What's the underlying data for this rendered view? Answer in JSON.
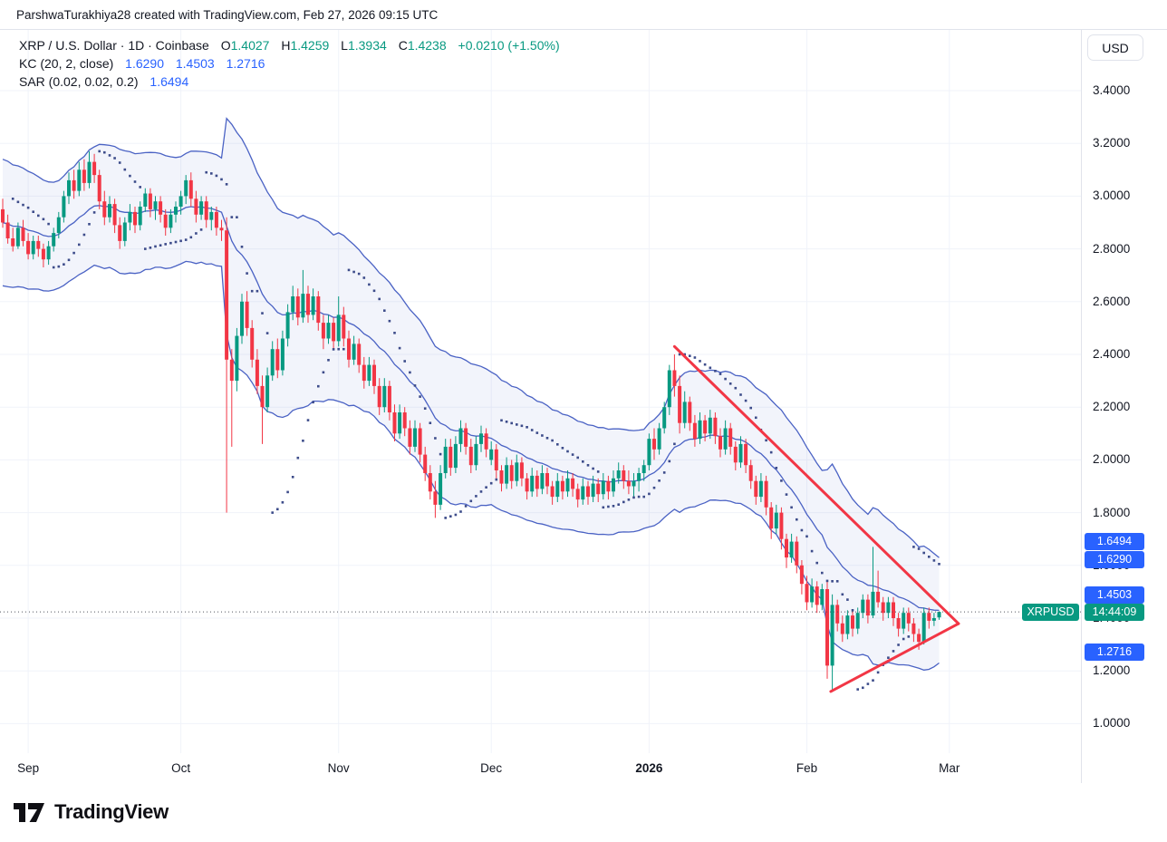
{
  "attribution": "ParshwaTurakhiya28 created with TradingView.com, Feb 27, 2026 09:15 UTC",
  "legend": {
    "symbol_line": "XRP / U.S. Dollar · 1D · Coinbase",
    "ohlc": {
      "o_label": "O",
      "o": "1.4027",
      "h_label": "H",
      "h": "1.4259",
      "l_label": "L",
      "l": "1.3934",
      "c_label": "C",
      "c": "1.4238",
      "change": "+0.0210 (+1.50%)"
    },
    "kc": {
      "title": "KC (20, 2, close)",
      "upper": "1.6290",
      "basis": "1.4503",
      "lower": "1.2716"
    },
    "sar": {
      "title": "SAR (0.02, 0.02, 0.2)",
      "value": "1.6494"
    }
  },
  "axis": {
    "currency_button": "USD",
    "y_ticks": [
      {
        "label": "3.4000",
        "price": 3.4
      },
      {
        "label": "3.2000",
        "price": 3.2
      },
      {
        "label": "3.0000",
        "price": 3.0
      },
      {
        "label": "2.8000",
        "price": 2.8
      },
      {
        "label": "2.6000",
        "price": 2.6
      },
      {
        "label": "2.4000",
        "price": 2.4
      },
      {
        "label": "2.2000",
        "price": 2.2
      },
      {
        "label": "2.0000",
        "price": 2.0
      },
      {
        "label": "1.8000",
        "price": 1.8
      },
      {
        "label": "1.6000",
        "price": 1.6
      },
      {
        "label": "1.4000",
        "price": 1.4
      },
      {
        "label": "1.2000",
        "price": 1.2
      },
      {
        "label": "1.0000",
        "price": 1.0
      }
    ],
    "x_labels": [
      {
        "label": "Sep",
        "i": 5
      },
      {
        "label": "Oct",
        "i": 35
      },
      {
        "label": "Nov",
        "i": 66
      },
      {
        "label": "Dec",
        "i": 96
      },
      {
        "label": "2026",
        "i": 127,
        "bold": true
      },
      {
        "label": "Feb",
        "i": 158
      },
      {
        "label": "Mar",
        "i": 186
      }
    ],
    "badges": [
      {
        "name": "sar-last-value-badge",
        "text": "1.6494",
        "price": 1.6494,
        "shift": -12,
        "bg": "#2962FF"
      },
      {
        "name": "kc-upper-badge",
        "text": "1.6290",
        "price": 1.629,
        "shift": 2,
        "bg": "#2962FF"
      },
      {
        "name": "kc-basis-badge",
        "text": "1.4503",
        "price": 1.4503,
        "shift": -11,
        "bg": "#2962FF"
      },
      {
        "name": "kc-lower-badge",
        "text": "1.2716",
        "price": 1.2716,
        "shift": 0,
        "bg": "#2962FF"
      }
    ],
    "price_line": {
      "label": "XRPUSD",
      "countdown": "14:44:09",
      "price": 1.4238,
      "bg": "#089981"
    }
  },
  "footer": {
    "brand": "TradingView"
  },
  "colors": {
    "up": "#089981",
    "down": "#F23645",
    "kc_line": "#4a62c4",
    "kc_fill": "rgba(74,98,196,0.07)",
    "sar": "#3d4c8a",
    "grid": "#f0f3fa",
    "price_line": "#50535e",
    "triangle": "#F23645",
    "value_blue": "#2962FF",
    "value_green": "#089981"
  },
  "chart_data": {
    "type": "candlestick",
    "symbol": "XRP/USD",
    "interval": "1D",
    "exchange": "Coinbase",
    "current_price": 1.4238,
    "y_axis_range": [
      0.89,
      3.52
    ],
    "indicators": [
      {
        "type": "keltner_channels",
        "label": "KC (20, 2, close)",
        "length": 20,
        "mult": 2,
        "source": "close",
        "atr_length": 10,
        "last_values": {
          "upper": 1.629,
          "basis": 1.4503,
          "lower": 1.2716
        }
      },
      {
        "type": "parabolic_sar",
        "label": "SAR (0.02, 0.02, 0.2)",
        "start": 0.02,
        "increment": 0.02,
        "max": 0.2,
        "last_value": 1.6494
      }
    ],
    "drawings": [
      {
        "type": "triangle_pattern",
        "color": "#F23645",
        "points": [
          {
            "i": 132,
            "price": 2.43
          },
          {
            "i": 187.8,
            "price": 1.379
          },
          {
            "i": 162.7,
            "price": 1.122
          }
        ]
      }
    ],
    "candles": [
      [
        2.95,
        2.99,
        2.88,
        2.9
      ],
      [
        2.9,
        2.93,
        2.82,
        2.84
      ],
      [
        2.84,
        2.88,
        2.79,
        2.81
      ],
      [
        2.81,
        2.9,
        2.8,
        2.88
      ],
      [
        2.88,
        2.91,
        2.81,
        2.83
      ],
      [
        2.83,
        2.86,
        2.76,
        2.78
      ],
      [
        2.78,
        2.85,
        2.76,
        2.83
      ],
      [
        2.83,
        2.85,
        2.77,
        2.8
      ],
      [
        2.8,
        2.82,
        2.73,
        2.76
      ],
      [
        2.76,
        2.83,
        2.74,
        2.81
      ],
      [
        2.81,
        2.88,
        2.79,
        2.86
      ],
      [
        2.86,
        2.94,
        2.84,
        2.92
      ],
      [
        2.92,
        3.02,
        2.9,
        3.0
      ],
      [
        3.0,
        3.09,
        2.97,
        3.06
      ],
      [
        3.06,
        3.1,
        2.99,
        3.02
      ],
      [
        3.02,
        3.13,
        3.0,
        3.1
      ],
      [
        3.1,
        3.14,
        3.02,
        3.05
      ],
      [
        3.05,
        3.17,
        3.03,
        3.13
      ],
      [
        3.13,
        3.16,
        3.05,
        3.08
      ],
      [
        3.08,
        3.1,
        2.95,
        2.98
      ],
      [
        2.98,
        3.02,
        2.89,
        2.92
      ],
      [
        2.92,
        3.0,
        2.9,
        2.97
      ],
      [
        2.97,
        2.99,
        2.86,
        2.89
      ],
      [
        2.89,
        2.92,
        2.8,
        2.83
      ],
      [
        2.83,
        2.92,
        2.81,
        2.9
      ],
      [
        2.9,
        2.97,
        2.87,
        2.94
      ],
      [
        2.94,
        2.96,
        2.86,
        2.89
      ],
      [
        2.89,
        2.98,
        2.87,
        2.96
      ],
      [
        2.96,
        3.03,
        2.94,
        3.01
      ],
      [
        3.01,
        3.03,
        2.92,
        2.95
      ],
      [
        2.95,
        3.0,
        2.91,
        2.98
      ],
      [
        2.98,
        3.0,
        2.9,
        2.93
      ],
      [
        2.93,
        2.95,
        2.85,
        2.88
      ],
      [
        2.88,
        2.95,
        2.86,
        2.93
      ],
      [
        2.93,
        2.98,
        2.9,
        2.96
      ],
      [
        2.96,
        3.02,
        2.93,
        3.0
      ],
      [
        3.0,
        3.08,
        2.97,
        3.06
      ],
      [
        3.06,
        3.09,
        2.96,
        2.99
      ],
      [
        2.99,
        3.02,
        2.9,
        2.93
      ],
      [
        2.93,
        3.0,
        2.91,
        2.98
      ],
      [
        2.98,
        3.0,
        2.88,
        2.91
      ],
      [
        2.91,
        2.96,
        2.87,
        2.94
      ],
      [
        2.94,
        2.96,
        2.85,
        2.88
      ],
      [
        2.88,
        2.91,
        2.83,
        2.87
      ],
      [
        2.87,
        2.92,
        1.8,
        2.38
      ],
      [
        2.38,
        2.42,
        2.05,
        2.3
      ],
      [
        2.3,
        2.5,
        2.26,
        2.47
      ],
      [
        2.47,
        2.63,
        2.44,
        2.6
      ],
      [
        2.6,
        2.64,
        2.47,
        2.5
      ],
      [
        2.5,
        2.53,
        2.35,
        2.38
      ],
      [
        2.38,
        2.42,
        2.25,
        2.28
      ],
      [
        2.28,
        2.32,
        2.06,
        2.2
      ],
      [
        2.2,
        2.35,
        2.18,
        2.32
      ],
      [
        2.32,
        2.45,
        2.3,
        2.42
      ],
      [
        2.42,
        2.46,
        2.31,
        2.34
      ],
      [
        2.34,
        2.49,
        2.32,
        2.46
      ],
      [
        2.46,
        2.59,
        2.43,
        2.56
      ],
      [
        2.56,
        2.66,
        2.53,
        2.62
      ],
      [
        2.62,
        2.65,
        2.51,
        2.54
      ],
      [
        2.54,
        2.72,
        2.52,
        2.63
      ],
      [
        2.63,
        2.66,
        2.52,
        2.55
      ],
      [
        2.55,
        2.65,
        2.53,
        2.62
      ],
      [
        2.62,
        2.64,
        2.49,
        2.52
      ],
      [
        2.52,
        2.55,
        2.42,
        2.46
      ],
      [
        2.46,
        2.55,
        2.44,
        2.52
      ],
      [
        2.52,
        2.54,
        2.42,
        2.45
      ],
      [
        2.45,
        2.62,
        2.43,
        2.55
      ],
      [
        2.55,
        2.58,
        2.43,
        2.46
      ],
      [
        2.46,
        2.49,
        2.35,
        2.38
      ],
      [
        2.38,
        2.47,
        2.36,
        2.44
      ],
      [
        2.44,
        2.46,
        2.33,
        2.36
      ],
      [
        2.36,
        2.39,
        2.27,
        2.3
      ],
      [
        2.3,
        2.39,
        2.28,
        2.36
      ],
      [
        2.36,
        2.38,
        2.25,
        2.28
      ],
      [
        2.28,
        2.31,
        2.17,
        2.2
      ],
      [
        2.2,
        2.31,
        2.18,
        2.28
      ],
      [
        2.28,
        2.3,
        2.15,
        2.18
      ],
      [
        2.18,
        2.21,
        2.07,
        2.1
      ],
      [
        2.1,
        2.21,
        2.08,
        2.18
      ],
      [
        2.18,
        2.2,
        2.09,
        2.12
      ],
      [
        2.12,
        2.15,
        2.02,
        2.05
      ],
      [
        2.05,
        2.15,
        2.03,
        2.12
      ],
      [
        2.12,
        2.14,
        1.99,
        2.02
      ],
      [
        2.02,
        2.05,
        1.92,
        1.95
      ],
      [
        1.95,
        1.98,
        1.85,
        1.88
      ],
      [
        1.88,
        1.92,
        1.78,
        1.83
      ],
      [
        1.83,
        1.98,
        1.81,
        1.95
      ],
      [
        1.95,
        2.08,
        1.93,
        2.05
      ],
      [
        2.05,
        2.08,
        1.94,
        1.97
      ],
      [
        1.97,
        2.09,
        1.95,
        2.06
      ],
      [
        2.06,
        2.15,
        2.03,
        2.12
      ],
      [
        2.12,
        2.14,
        2.02,
        2.05
      ],
      [
        2.05,
        2.08,
        1.95,
        1.98
      ],
      [
        1.98,
        2.09,
        1.96,
        2.06
      ],
      [
        2.06,
        2.13,
        2.03,
        2.1
      ],
      [
        2.1,
        2.12,
        2.01,
        2.04
      ],
      [
        2.0,
        2.07,
        1.98,
        2.04
      ],
      [
        2.04,
        2.06,
        1.93,
        1.96
      ],
      [
        1.96,
        1.98,
        1.88,
        1.91
      ],
      [
        1.91,
        2.01,
        1.89,
        1.98
      ],
      [
        1.98,
        2.0,
        1.89,
        1.92
      ],
      [
        1.92,
        2.02,
        1.9,
        1.99
      ],
      [
        1.99,
        2.01,
        1.9,
        1.93
      ],
      [
        1.93,
        1.95,
        1.85,
        1.88
      ],
      [
        1.88,
        1.97,
        1.86,
        1.94
      ],
      [
        1.94,
        1.96,
        1.86,
        1.89
      ],
      [
        1.89,
        1.98,
        1.87,
        1.95
      ],
      [
        1.95,
        1.97,
        1.87,
        1.9
      ],
      [
        1.9,
        1.92,
        1.83,
        1.86
      ],
      [
        1.86,
        1.95,
        1.84,
        1.92
      ],
      [
        1.92,
        1.94,
        1.85,
        1.88
      ],
      [
        1.88,
        1.96,
        1.86,
        1.93
      ],
      [
        1.93,
        1.95,
        1.86,
        1.89
      ],
      [
        1.89,
        1.91,
        1.82,
        1.85
      ],
      [
        1.85,
        1.93,
        1.83,
        1.9
      ],
      [
        1.9,
        1.92,
        1.83,
        1.86
      ],
      [
        1.86,
        1.94,
        1.84,
        1.91
      ],
      [
        1.91,
        1.93,
        1.84,
        1.87
      ],
      [
        1.87,
        1.95,
        1.85,
        1.92
      ],
      [
        1.92,
        1.94,
        1.85,
        1.88
      ],
      [
        1.88,
        1.96,
        1.86,
        1.93
      ],
      [
        1.93,
        1.99,
        1.91,
        1.96
      ],
      [
        1.96,
        1.98,
        1.89,
        1.92
      ],
      [
        1.92,
        1.96,
        1.87,
        1.9
      ],
      [
        1.9,
        1.95,
        1.86,
        1.92
      ],
      [
        1.92,
        1.97,
        1.88,
        1.95
      ],
      [
        1.95,
        2.0,
        1.92,
        1.98
      ],
      [
        1.98,
        2.1,
        1.96,
        2.08
      ],
      [
        2.08,
        2.12,
        2.0,
        2.04
      ],
      [
        2.04,
        2.14,
        2.02,
        2.12
      ],
      [
        2.12,
        2.22,
        2.1,
        2.2
      ],
      [
        2.2,
        2.36,
        2.17,
        2.34
      ],
      [
        2.34,
        2.4,
        2.24,
        2.28
      ],
      [
        2.28,
        2.32,
        2.1,
        2.14
      ],
      [
        2.14,
        2.26,
        2.12,
        2.22
      ],
      [
        2.22,
        2.24,
        2.11,
        2.14
      ],
      [
        2.14,
        2.17,
        2.05,
        2.08
      ],
      [
        2.08,
        2.18,
        2.06,
        2.15
      ],
      [
        2.15,
        2.17,
        2.07,
        2.1
      ],
      [
        2.1,
        2.19,
        2.08,
        2.16
      ],
      [
        2.16,
        2.18,
        2.06,
        2.09
      ],
      [
        2.09,
        2.12,
        2.01,
        2.04
      ],
      [
        2.04,
        2.15,
        2.02,
        2.12
      ],
      [
        2.12,
        2.14,
        2.02,
        2.05
      ],
      [
        2.05,
        2.07,
        1.96,
        1.99
      ],
      [
        1.99,
        2.09,
        1.97,
        2.06
      ],
      [
        2.06,
        2.08,
        1.95,
        1.98
      ],
      [
        1.98,
        2.0,
        1.89,
        1.92
      ],
      [
        1.92,
        1.94,
        1.83,
        1.86
      ],
      [
        1.86,
        1.95,
        1.84,
        1.92
      ],
      [
        1.92,
        1.94,
        1.79,
        1.82
      ],
      [
        1.82,
        1.84,
        1.7,
        1.74
      ],
      [
        1.74,
        1.83,
        1.72,
        1.8
      ],
      [
        1.8,
        1.82,
        1.66,
        1.7
      ],
      [
        1.7,
        1.72,
        1.59,
        1.63
      ],
      [
        1.63,
        1.72,
        1.61,
        1.69
      ],
      [
        1.69,
        1.71,
        1.57,
        1.6
      ],
      [
        1.6,
        1.62,
        1.49,
        1.53
      ],
      [
        1.53,
        1.56,
        1.43,
        1.46
      ],
      [
        1.46,
        1.55,
        1.44,
        1.52
      ],
      [
        1.52,
        1.54,
        1.42,
        1.45
      ],
      [
        1.45,
        1.53,
        1.43,
        1.51
      ],
      [
        1.51,
        1.54,
        1.17,
        1.22
      ],
      [
        1.22,
        1.49,
        1.13,
        1.45
      ],
      [
        1.45,
        1.47,
        1.35,
        1.38
      ],
      [
        1.38,
        1.41,
        1.31,
        1.34
      ],
      [
        1.34,
        1.43,
        1.32,
        1.41
      ],
      [
        1.41,
        1.43,
        1.33,
        1.36
      ],
      [
        1.36,
        1.44,
        1.34,
        1.42
      ],
      [
        1.42,
        1.49,
        1.4,
        1.47
      ],
      [
        1.47,
        1.49,
        1.38,
        1.41
      ],
      [
        1.41,
        1.67,
        1.4,
        1.5
      ],
      [
        1.5,
        1.58,
        1.44,
        1.46
      ],
      [
        1.46,
        1.48,
        1.39,
        1.42
      ],
      [
        1.42,
        1.48,
        1.4,
        1.46
      ],
      [
        1.46,
        1.48,
        1.37,
        1.4
      ],
      [
        1.4,
        1.42,
        1.33,
        1.36
      ],
      [
        1.36,
        1.44,
        1.34,
        1.42
      ],
      [
        1.42,
        1.44,
        1.35,
        1.38
      ],
      [
        1.38,
        1.4,
        1.31,
        1.34
      ],
      [
        1.34,
        1.36,
        1.28,
        1.31
      ],
      [
        1.31,
        1.44,
        1.3,
        1.42
      ],
      [
        1.42,
        1.44,
        1.36,
        1.39
      ],
      [
        1.39,
        1.42,
        1.37,
        1.4
      ],
      [
        1.4027,
        1.4259,
        1.3934,
        1.4238
      ]
    ]
  }
}
